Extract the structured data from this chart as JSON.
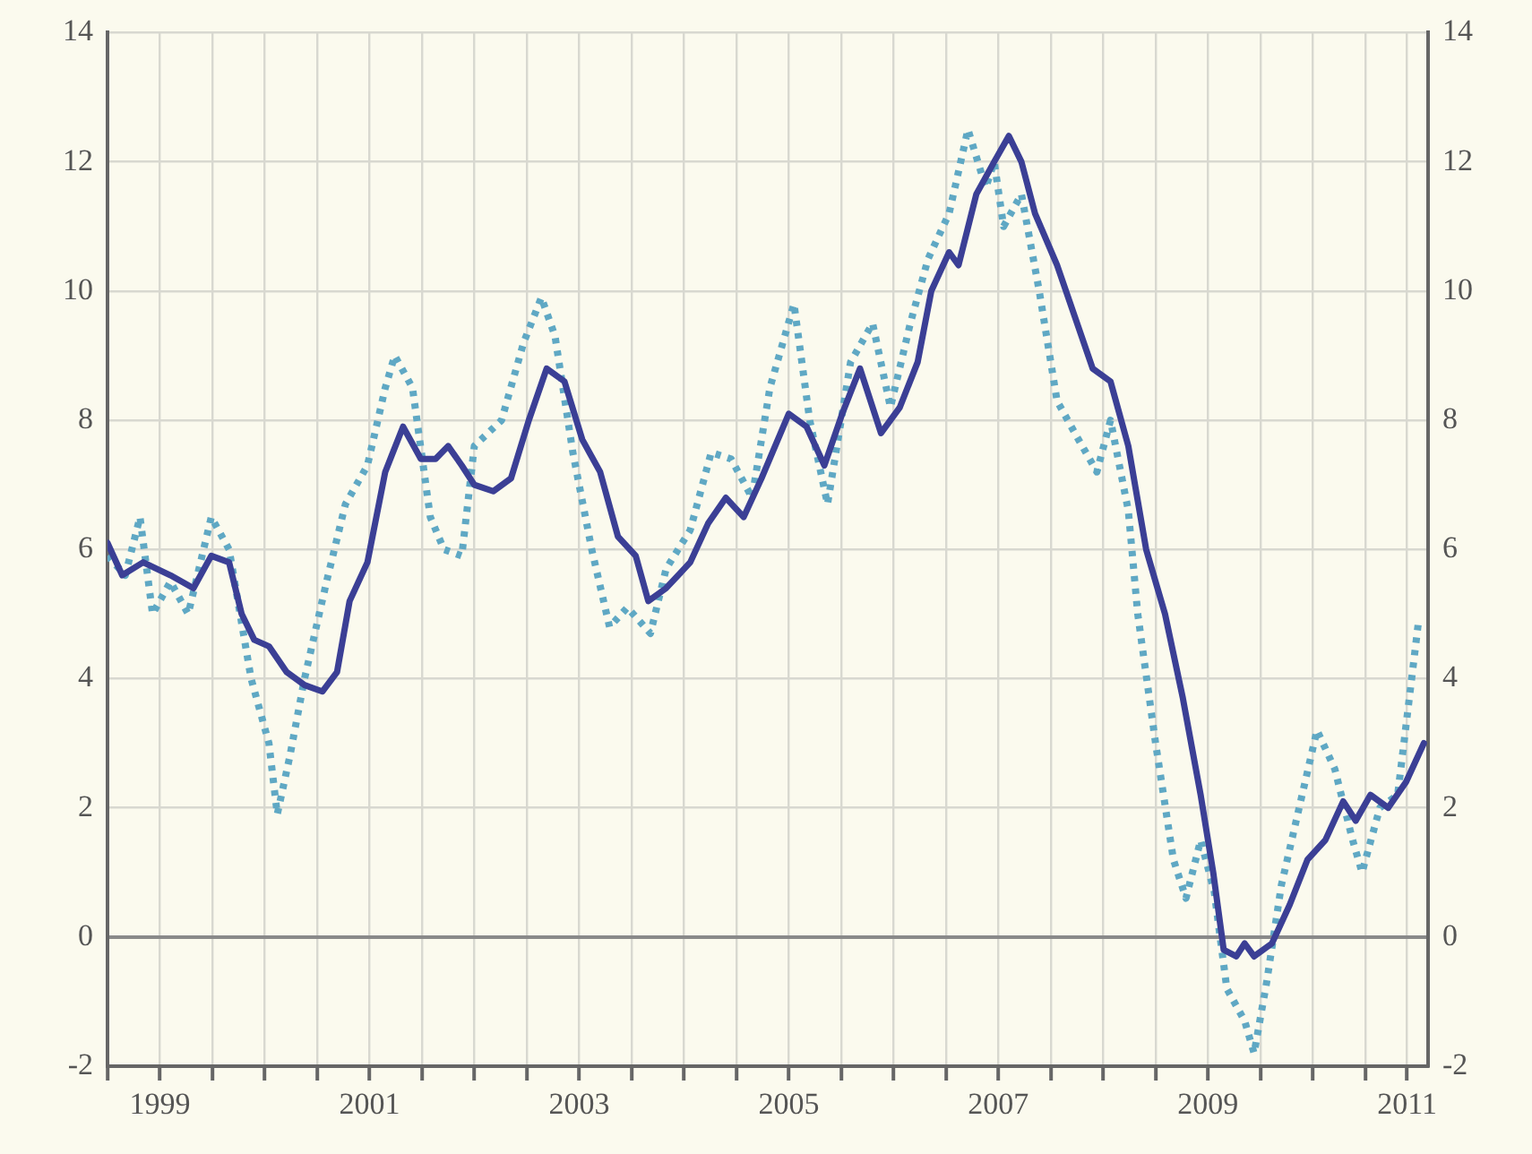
{
  "chart_data": {
    "type": "line",
    "xlim": [
      1999,
      2011.6
    ],
    "xticks": [
      {
        "value": 1999,
        "label": null
      },
      {
        "value": 1999.5,
        "label": "1999"
      },
      {
        "value": 2000,
        "label": null
      },
      {
        "value": 2000.5,
        "label": null
      },
      {
        "value": 2001,
        "label": null
      },
      {
        "value": 2001.5,
        "label": "2001"
      },
      {
        "value": 2002,
        "label": null
      },
      {
        "value": 2002.5,
        "label": null
      },
      {
        "value": 2003,
        "label": null
      },
      {
        "value": 2003.5,
        "label": "2003"
      },
      {
        "value": 2004,
        "label": null
      },
      {
        "value": 2004.5,
        "label": null
      },
      {
        "value": 2005,
        "label": null
      },
      {
        "value": 2005.5,
        "label": "2005"
      },
      {
        "value": 2006,
        "label": null
      },
      {
        "value": 2006.5,
        "label": null
      },
      {
        "value": 2007,
        "label": null
      },
      {
        "value": 2007.5,
        "label": "2007"
      },
      {
        "value": 2008,
        "label": null
      },
      {
        "value": 2008.5,
        "label": null
      },
      {
        "value": 2009,
        "label": null
      },
      {
        "value": 2009.5,
        "label": "2009"
      },
      {
        "value": 2010,
        "label": null
      },
      {
        "value": 2010.5,
        "label": null
      },
      {
        "value": 2011,
        "label": null
      },
      {
        "value": 2011.4,
        "label": "2011"
      }
    ],
    "ylim": [
      -2,
      14
    ],
    "yticks": [
      -2,
      0,
      2,
      4,
      6,
      8,
      10,
      12,
      14
    ],
    "y2lim": [
      -2,
      14
    ],
    "y2ticks": [
      -2,
      0,
      2,
      4,
      6,
      8,
      10,
      12,
      14
    ],
    "grid": true,
    "legend": false,
    "marker": "none",
    "series": [
      {
        "color": "#3b3f95",
        "line_style": "solid",
        "x": [
          1999.0,
          1999.14,
          1999.34,
          1999.6,
          1999.82,
          1999.99,
          2000.16,
          2000.28,
          2000.4,
          2000.54,
          2000.71,
          2000.88,
          2001.05,
          2001.19,
          2001.31,
          2001.48,
          2001.65,
          2001.82,
          2001.99,
          2002.13,
          2002.25,
          2002.38,
          2002.5,
          2002.68,
          2002.85,
          2003.02,
          2003.19,
          2003.36,
          2003.53,
          2003.7,
          2003.87,
          2004.04,
          2004.16,
          2004.33,
          2004.56,
          2004.73,
          2004.9,
          2005.07,
          2005.24,
          2005.5,
          2005.67,
          2005.84,
          2006.01,
          2006.18,
          2006.38,
          2006.56,
          2006.73,
          2006.86,
          2007.03,
          2007.12,
          2007.29,
          2007.46,
          2007.6,
          2007.72,
          2007.85,
          2008.06,
          2008.23,
          2008.4,
          2008.57,
          2008.74,
          2008.91,
          2009.09,
          2009.26,
          2009.43,
          2009.55,
          2009.65,
          2009.77,
          2009.85,
          2009.94,
          2010.11,
          2010.28,
          2010.45,
          2010.62,
          2010.79,
          2010.91,
          2011.05,
          2011.22,
          2011.39,
          2011.56
        ],
        "values": [
          6.1,
          5.6,
          5.8,
          5.6,
          5.4,
          5.9,
          5.8,
          5.0,
          4.6,
          4.5,
          4.1,
          3.9,
          3.8,
          4.1,
          5.2,
          5.8,
          7.2,
          7.9,
          7.4,
          7.4,
          7.6,
          7.3,
          7.0,
          6.9,
          7.1,
          8.0,
          8.8,
          8.6,
          7.7,
          7.2,
          6.2,
          5.9,
          5.2,
          5.4,
          5.8,
          6.4,
          6.8,
          6.5,
          7.1,
          8.1,
          7.9,
          7.3,
          8.1,
          8.8,
          7.8,
          8.2,
          8.9,
          10.0,
          10.6,
          10.4,
          11.5,
          12.0,
          12.4,
          12.0,
          11.2,
          10.4,
          9.6,
          8.8,
          8.6,
          7.6,
          6.0,
          5.0,
          3.7,
          2.2,
          1.0,
          -0.2,
          -0.3,
          -0.1,
          -0.3,
          -0.1,
          0.5,
          1.2,
          1.5,
          2.1,
          1.8,
          2.2,
          2.0,
          2.4,
          3.0
        ]
      },
      {
        "color": "#5fa8c4",
        "line_style": "dotted",
        "x": [
          1999.0,
          1999.17,
          1999.31,
          1999.43,
          1999.6,
          1999.77,
          1999.99,
          2000.16,
          2000.37,
          2000.54,
          2000.62,
          2000.74,
          2000.88,
          2001.09,
          2001.27,
          2001.48,
          2001.65,
          2001.74,
          2001.91,
          2002.08,
          2002.21,
          2002.38,
          2002.5,
          2002.76,
          2002.97,
          2003.14,
          2003.27,
          2003.44,
          2003.62,
          2003.79,
          2003.96,
          2004.18,
          2004.33,
          2004.56,
          2004.76,
          2004.95,
          2005.15,
          2005.32,
          2005.55,
          2005.7,
          2005.87,
          2006.09,
          2006.3,
          2006.47,
          2006.66,
          2006.83,
          2007.03,
          2007.21,
          2007.38,
          2007.46,
          2007.55,
          2007.72,
          2007.89,
          2008.06,
          2008.23,
          2008.44,
          2008.57,
          2008.74,
          2008.83,
          2009.0,
          2009.17,
          2009.29,
          2009.43,
          2009.56,
          2009.68,
          2009.85,
          2009.94,
          2010.06,
          2010.2,
          2010.37,
          2010.54,
          2010.71,
          2010.88,
          2010.97,
          2011.14,
          2011.31,
          2011.51
        ],
        "values": [
          5.9,
          5.6,
          6.5,
          5.0,
          5.5,
          5.0,
          6.5,
          6.0,
          4.0,
          3.0,
          1.9,
          2.8,
          4.0,
          5.5,
          6.7,
          7.3,
          8.5,
          9.0,
          8.5,
          6.5,
          6.0,
          5.9,
          7.6,
          8.0,
          9.2,
          9.9,
          9.3,
          7.5,
          6.0,
          4.8,
          5.1,
          4.7,
          5.7,
          6.3,
          7.5,
          7.4,
          6.8,
          8.5,
          9.8,
          8.0,
          6.7,
          8.9,
          9.5,
          8.2,
          9.5,
          10.5,
          11.2,
          12.5,
          11.6,
          12.0,
          11.0,
          11.5,
          10.0,
          8.3,
          7.8,
          7.2,
          8.0,
          6.6,
          5.0,
          3.0,
          1.2,
          0.6,
          1.5,
          0.7,
          -0.8,
          -1.3,
          -1.8,
          -0.7,
          0.8,
          2.0,
          3.2,
          2.6,
          1.5,
          1.0,
          2.0,
          2.2,
          4.9
        ]
      }
    ]
  }
}
